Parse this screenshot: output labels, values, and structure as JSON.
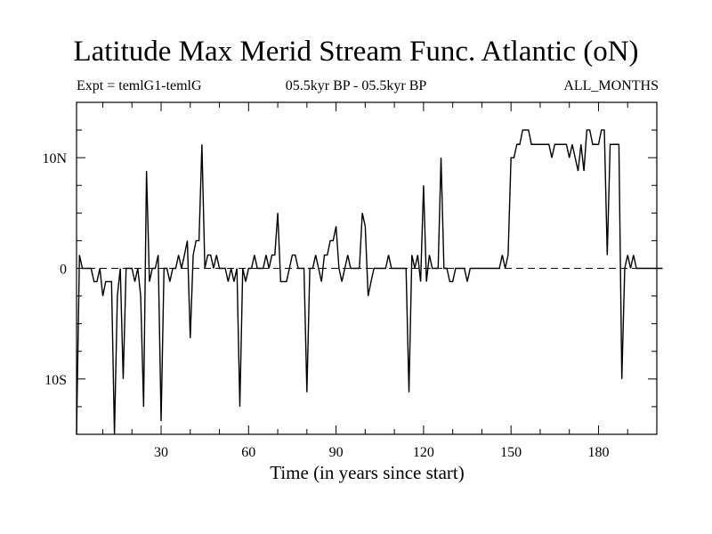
{
  "header": {
    "title": "Latitude Max Merid Stream Func. Atlantic (oN)",
    "expt": "Expt = temlG1-temlG",
    "period": "05.5kyr BP - 05.5kyr BP",
    "months": "ALL_MONTHS"
  },
  "chart_data": {
    "type": "line",
    "title": "Latitude Max Merid Stream Func. Atlantic (oN)",
    "xlabel": "Time (in years since start)",
    "ylabel": "",
    "xlim": [
      1,
      200
    ],
    "ylim": [
      -15,
      15
    ],
    "x_ticks": [
      30,
      60,
      90,
      120,
      150,
      180
    ],
    "x_tick_labels": [
      "30",
      "60",
      "90",
      "120",
      "150",
      "180"
    ],
    "y_ticks": [
      -10,
      0,
      10
    ],
    "y_tick_labels": [
      "10S",
      "0",
      "10N"
    ],
    "zero_line": "dashed",
    "grid": false,
    "series": [
      {
        "values": [
          -15,
          1.2,
          0,
          0,
          0,
          0,
          -1.2,
          -1.2,
          0,
          -2.5,
          -1.2,
          -1.2,
          -1.2,
          -15,
          -2.5,
          0,
          -10,
          0,
          0,
          0,
          -1.2,
          0,
          -2.5,
          -12.5,
          8.8,
          -1.2,
          0,
          0,
          1.2,
          -13.8,
          0,
          0,
          -1.2,
          0,
          0,
          1.2,
          0,
          1.2,
          2.5,
          -6.3,
          1.2,
          2.5,
          2.5,
          11.2,
          0,
          1.2,
          1.2,
          0,
          1.2,
          0,
          0,
          0,
          -1.2,
          0,
          -1.2,
          0,
          -12.5,
          0,
          -1.2,
          0,
          0,
          1.2,
          0,
          0,
          0,
          1.2,
          0,
          1.2,
          1.2,
          5,
          -1.2,
          -1.2,
          -1.2,
          0,
          1.2,
          1.2,
          0,
          0,
          0,
          -11.2,
          0,
          0,
          1.2,
          0,
          -1.2,
          1.2,
          1.2,
          2.5,
          2.5,
          3.8,
          0,
          -1.2,
          0,
          1.2,
          0,
          0,
          0,
          0,
          5,
          3.8,
          -2.5,
          -1.2,
          0,
          0,
          0,
          0,
          0,
          1.2,
          0,
          0,
          0,
          0,
          0,
          0,
          -11.2,
          1.2,
          0,
          1.2,
          -1.2,
          7.5,
          -1.2,
          1.2,
          0,
          0,
          0,
          10,
          0,
          0,
          -1.2,
          -1.2,
          0,
          0,
          0,
          0,
          -1.2,
          0,
          0,
          0,
          0,
          0,
          0,
          0,
          0,
          0,
          0,
          0,
          1.2,
          0,
          1.2,
          10,
          10,
          11.2,
          11.2,
          12.5,
          12.5,
          12.5,
          11.2,
          11.2,
          11.2,
          11.2,
          11.2,
          11.2,
          11.2,
          10,
          11.2,
          11.2,
          11.2,
          11.2,
          11.2,
          10,
          11.2,
          10,
          8.8,
          11.2,
          8.8,
          12.5,
          12.5,
          11.2,
          11.2,
          11.2,
          12.5,
          12.5,
          1.2,
          11.2,
          11.2,
          11.2,
          11.2,
          -10,
          0,
          1.2,
          0,
          1.2,
          0,
          0,
          0,
          0,
          0,
          0,
          0,
          0,
          0,
          0
        ]
      }
    ]
  }
}
